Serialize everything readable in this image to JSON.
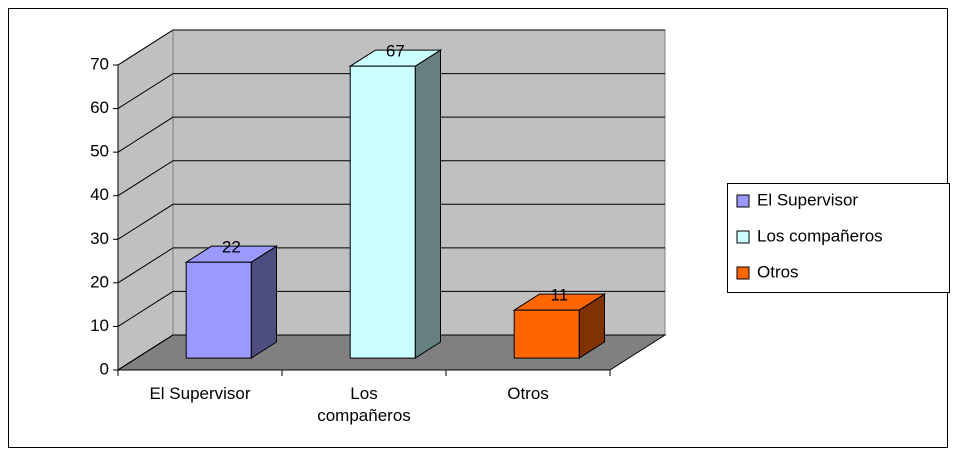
{
  "chart_data": {
    "type": "bar3d",
    "categories": [
      "El Supervisor",
      "Los compañeros",
      "Otros"
    ],
    "values": [
      22,
      67,
      11
    ],
    "colors": [
      "#9999ff",
      "#ccffff",
      "#ff6600"
    ],
    "ylim": [
      0,
      70
    ],
    "yticks": [
      0,
      10,
      20,
      30,
      40,
      50,
      60,
      70
    ],
    "grid": true,
    "legend": "right"
  }
}
